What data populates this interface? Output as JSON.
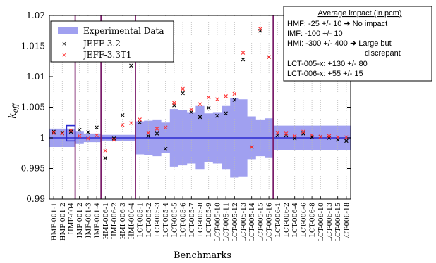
{
  "chart_data": {
    "type": "scatter",
    "ylabel": "k_eff",
    "xlabel": "Benchmarks",
    "ylim": [
      0.99,
      1.02
    ],
    "yticks": [
      0.99,
      0.995,
      1,
      1.005,
      1.01,
      1.015,
      1.02
    ],
    "ytick_labels": [
      "0.99",
      "0.995",
      "1",
      "1.005",
      "1.01",
      "1.015",
      "1.02"
    ],
    "grid": "vertical dotted",
    "legend_position": "top-left",
    "categories": [
      "HMF-001-1",
      "HMF-001-2",
      "HMF-004",
      "IMF-001-2",
      "IMF-001-3",
      "IMF-001-4",
      "HMI-006-1",
      "HMI-006-2",
      "HMI-006-3",
      "HMI-006-4",
      "LCT-005-1",
      "LCT-005-2",
      "LCT-005-3",
      "LCT-005-4",
      "LCT-005-5",
      "LCT-005-6",
      "LCT-005-7",
      "LCT-005-8",
      "LCT-005-9",
      "LCT-005-10",
      "LCT-005-11",
      "LCT-005-12",
      "LCT-005-13",
      "LCT-005-14",
      "LCT-005-15",
      "LCT-005-16",
      "LCT-006-1",
      "LCT-006-2",
      "LCT-006-4",
      "LCT-006-6",
      "LCT-006-8",
      "LCT-006-10",
      "LCT-006-13",
      "LCT-006-15",
      "LCT-006-18"
    ],
    "series": [
      {
        "name": "Experimental Data",
        "kind": "band",
        "color": "#a0a0f0",
        "lower": [
          0.9985,
          0.9985,
          0.9985,
          0.999,
          0.9993,
          0.9993,
          0.9995,
          0.9995,
          0.9995,
          0.9995,
          0.9973,
          0.9972,
          0.997,
          0.9975,
          0.9953,
          0.9955,
          0.9958,
          0.9948,
          0.996,
          0.9958,
          0.9948,
          0.9935,
          0.9937,
          0.9965,
          0.997,
          0.9968,
          0.998,
          0.998,
          0.998,
          0.998,
          0.998,
          0.998,
          0.998,
          0.998,
          0.998
        ],
        "upper": [
          1.0015,
          1.0015,
          1.0015,
          1.001,
          1.0007,
          1.0007,
          1.0005,
          1.0005,
          1.0005,
          1.0005,
          1.0027,
          1.0028,
          1.003,
          1.0025,
          1.0047,
          1.0045,
          1.0042,
          1.0052,
          1.004,
          1.0042,
          1.0052,
          1.0065,
          1.0063,
          1.0035,
          1.003,
          1.0032,
          1.002,
          1.002,
          1.002,
          1.002,
          1.002,
          1.002,
          1.002,
          1.002,
          1.002
        ]
      },
      {
        "name": "JEFF-3.2",
        "marker": "×",
        "color": "#000000",
        "values": [
          1.001,
          1.0008,
          1.001,
          1.0013,
          1.0009,
          1.0017,
          0.9967,
          0.9999,
          1.0037,
          1.0118,
          1.0025,
          1.0003,
          1.0007,
          0.9982,
          1.0053,
          1.0073,
          1.0042,
          1.0034,
          1.0049,
          1.0036,
          1.004,
          1.0062,
          1.0128,
          0.9985,
          1.0175,
          1.0132,
          1.0004,
          1.0004,
          0.9999,
          1.0007,
          1.0001,
          1.0002,
          1.0,
          0.9997,
          0.9995
        ]
      },
      {
        "name": "JEFF-3.3T1",
        "marker": "×",
        "color": "#ff3030",
        "values": [
          1.0008,
          1.0007,
          1.0012,
          1.0003,
          0.9999,
          1.0004,
          0.9979,
          0.9997,
          1.0021,
          1.0024,
          1.003,
          1.0008,
          1.0015,
          1.0017,
          1.0057,
          1.008,
          1.0046,
          1.0055,
          1.0066,
          1.0063,
          1.0068,
          1.0072,
          1.0139,
          0.9985,
          1.0178,
          1.0132,
          1.0008,
          1.0007,
          1.0003,
          1.001,
          1.0004,
          1.0002,
          1.0003,
          1.0001,
          1.0001
        ]
      }
    ],
    "reference_line": 1,
    "group_separators_after": [
      2,
      5,
      9,
      25
    ],
    "hmf004_box": [
      0.9995,
      1.002
    ],
    "annotation": {
      "title": "Average impact (in pcm)",
      "lines": [
        "HMF: -25 +/- 10 ➜  No impact",
        "IMF: -100 +/- 10",
        "HMI: -300 +/- 400 ➜ Large but",
        "discrepant",
        "LCT-005-x: +130 +/- 80",
        "LCT-006-x: +55   +/- 15"
      ]
    }
  },
  "colors": {
    "band": "#a0a0f0",
    "reference": "#2a2ad0",
    "separator": "#7a1c6a",
    "jeff32": "#000000",
    "jeff33": "#ff3030"
  }
}
